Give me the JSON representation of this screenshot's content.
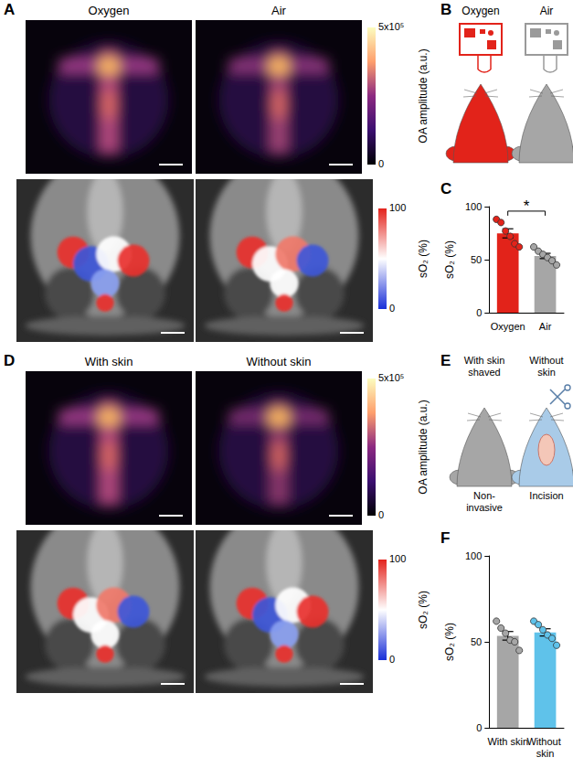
{
  "panels": {
    "A": {
      "panel": "A",
      "titles": [
        "Oxygen",
        "Air"
      ],
      "oa_colorbar": {
        "label": "OA amplitude (a.u.)",
        "range": [
          0,
          500000
        ],
        "ticks": [
          0,
          {
            "value": 500000,
            "label": "5x10⁵"
          }
        ]
      },
      "so2_colorbar": {
        "label": "sO₂ (%)",
        "range": [
          0,
          100
        ],
        "ticks": [
          0,
          100
        ]
      }
    },
    "B": {
      "panel": "B",
      "titles": [
        "Oxygen",
        "Air"
      ]
    },
    "D": {
      "panel": "D",
      "titles": [
        "With skin",
        "Without skin"
      ],
      "oa_colorbar": {
        "label": "OA amplitude (a.u.)",
        "range": [
          0,
          500000
        ],
        "ticks": [
          0,
          {
            "value": 500000,
            "label": "5x10⁵"
          }
        ]
      },
      "so2_colorbar": {
        "label": "sO₂ (%)",
        "range": [
          0,
          100
        ],
        "ticks": [
          0,
          100
        ]
      }
    },
    "E": {
      "panel": "E",
      "titles": [
        "With skin shaved",
        "Without skin"
      ],
      "captions": [
        "Non-invasive",
        "Incision"
      ]
    }
  },
  "chart_data": [
    {
      "panel": "C",
      "type": "bar",
      "categories": [
        "Oxygen",
        "Air"
      ],
      "values": [
        74.8,
        53.5
      ],
      "errors": [
        4.3,
        2.5
      ],
      "points": [
        [
          88,
          85,
          77,
          72,
          65,
          62
        ],
        [
          62,
          58,
          55,
          52,
          49,
          45
        ]
      ],
      "colors": [
        "#e2231a",
        "#a6a6a6"
      ],
      "ylabel": "sO₂ (%)",
      "ylim": [
        0,
        100
      ],
      "yticks": [
        0,
        50,
        100
      ],
      "grid": false,
      "annotations": [
        {
          "text": "*",
          "between": [
            "Oxygen",
            "Air"
          ]
        }
      ]
    },
    {
      "panel": "F",
      "type": "bar",
      "categories": [
        "With skin",
        "Without skin"
      ],
      "values": [
        53.5,
        55.5
      ],
      "errors": [
        2.5,
        2.1
      ],
      "points": [
        [
          62,
          58,
          55,
          51,
          50,
          45
        ],
        [
          62,
          60,
          57,
          54,
          52,
          48
        ]
      ],
      "colors": [
        "#a6a6a6",
        "#5fc2ea"
      ],
      "ylabel": "sO₂ (%)",
      "ylim": [
        0,
        100
      ],
      "yticks": [
        0,
        50,
        100
      ],
      "grid": false
    }
  ]
}
